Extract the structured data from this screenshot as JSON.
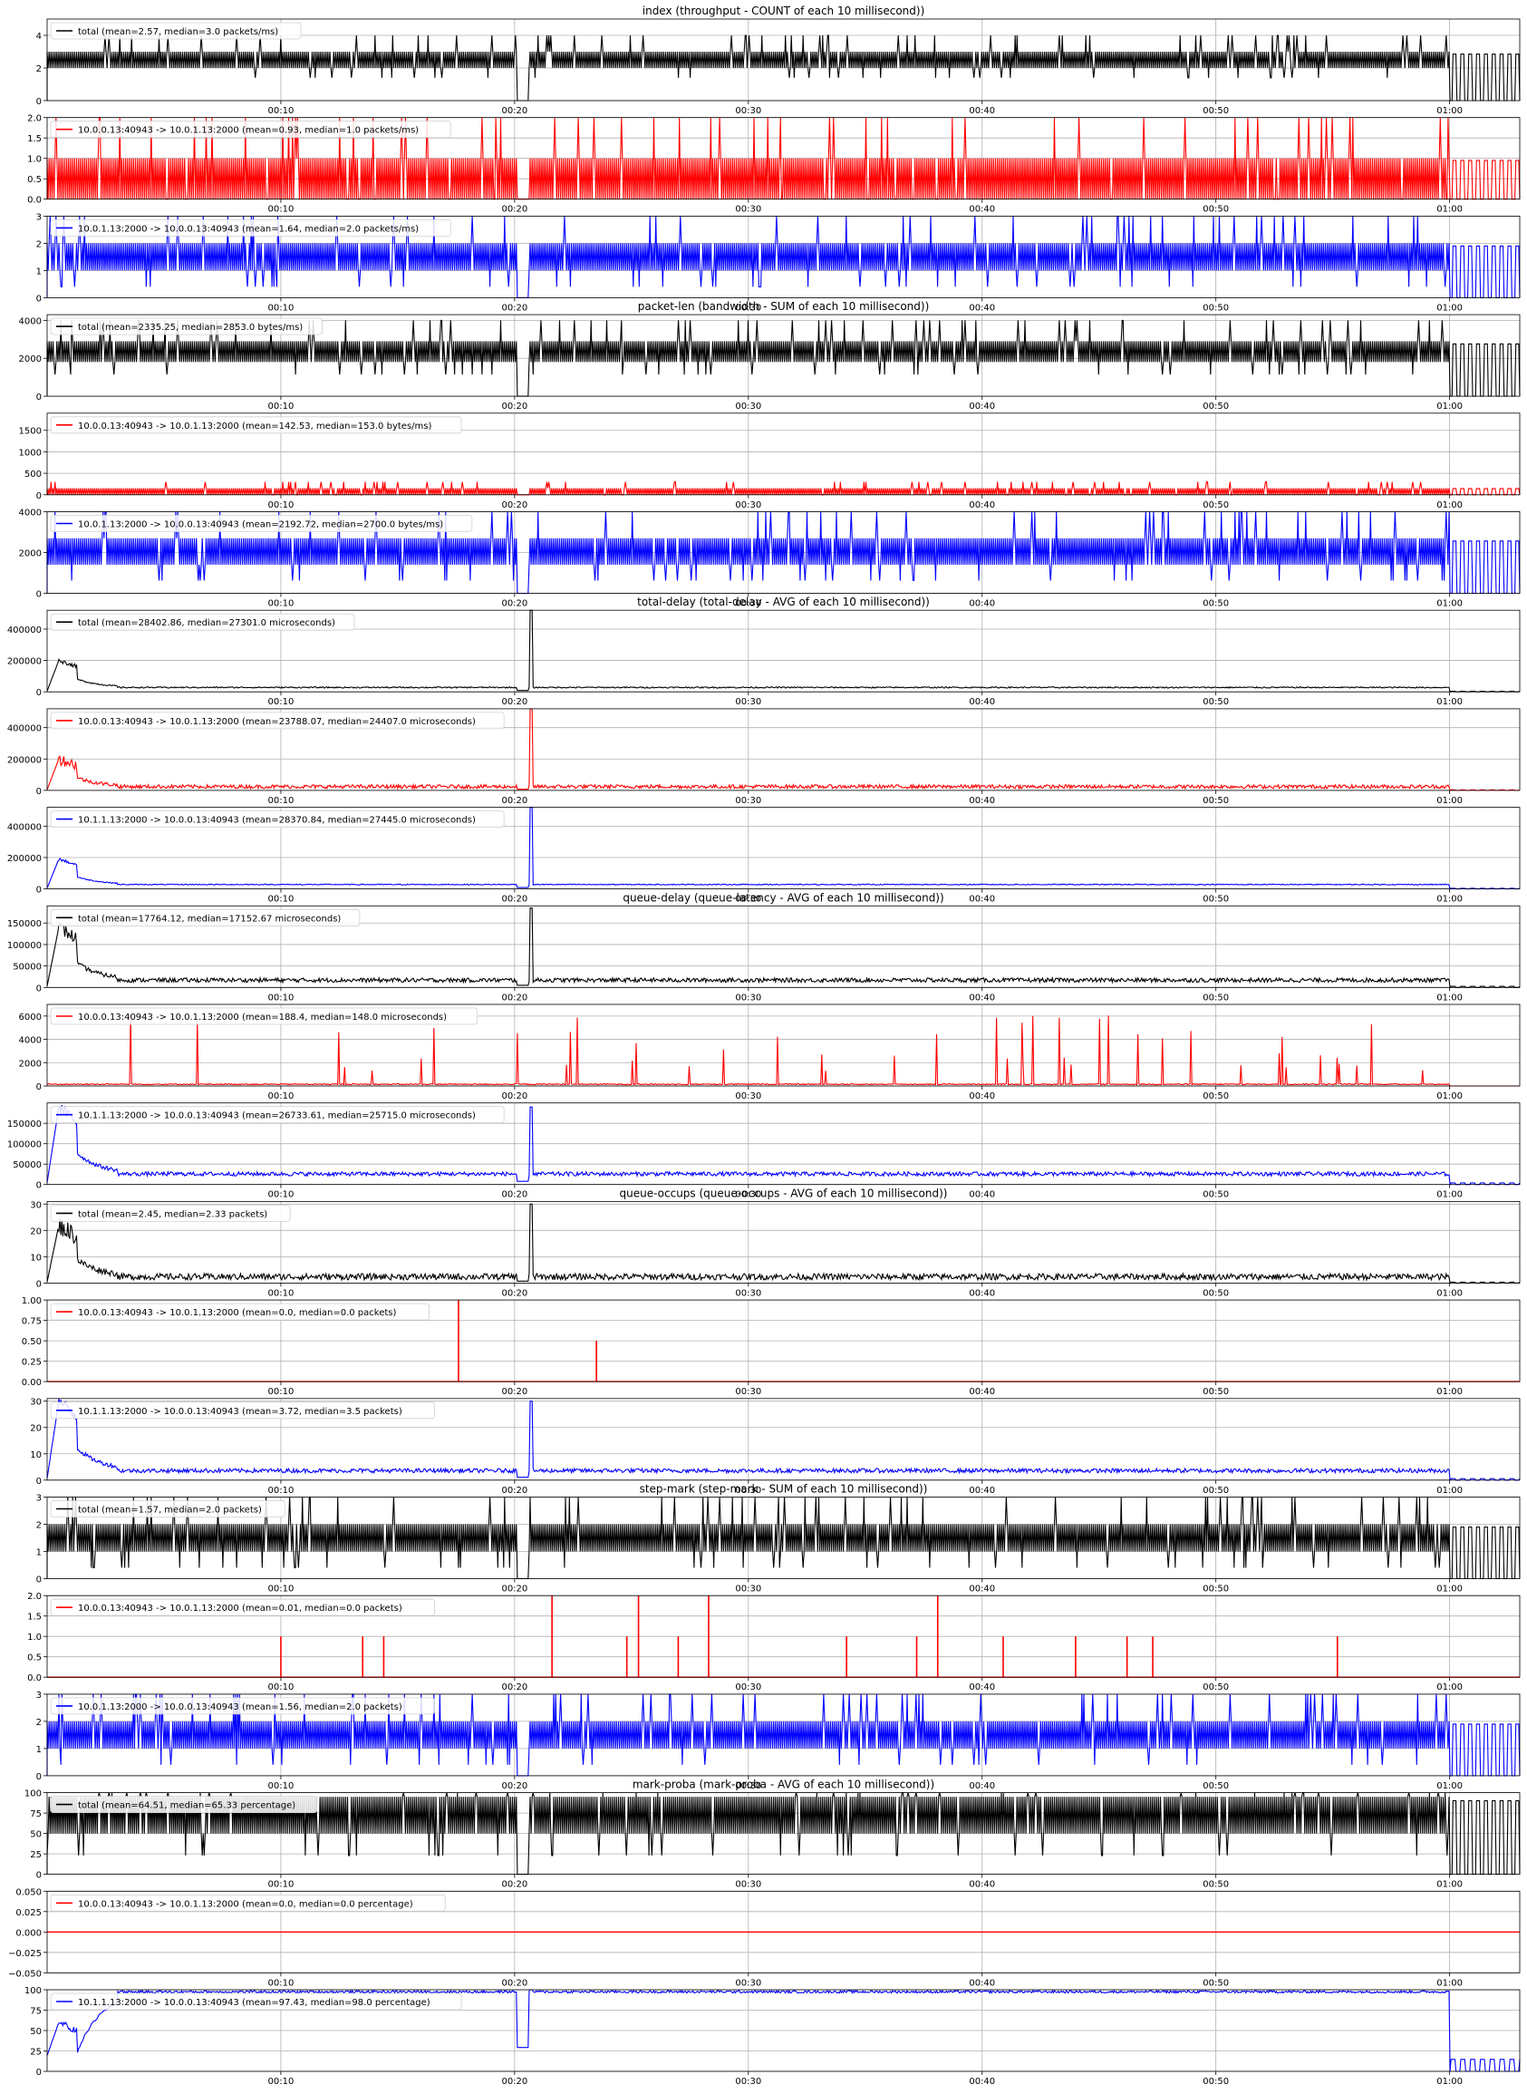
{
  "figure": {
    "x_ticks": [
      "00:10",
      "00:20",
      "00:30",
      "00:40",
      "00:50",
      "01:00"
    ],
    "colors": {
      "total": "#000000",
      "forward": "#ff0000",
      "reverse": "#0000ff"
    }
  },
  "chart_data": [
    {
      "type": "line",
      "group": 0,
      "title": "index (throughput - COUNT of each 10 millisecond))",
      "series": [
        {
          "name": "total (mean=2.57, median=3.0 packets/ms)",
          "color": "#000000",
          "kind": "band",
          "lo": 2,
          "hi": 3,
          "mean": 2.57,
          "median": 3.0,
          "spike": 4
        }
      ],
      "ylim": [
        0,
        5
      ],
      "yticks": [
        0,
        2,
        4
      ],
      "ytick_labels": [
        "0",
        "2",
        "4"
      ]
    },
    {
      "type": "line",
      "group": 0,
      "series": [
        {
          "name": "10.0.0.13:40943 -> 10.0.1.13:2000 (mean=0.93, median=1.0 packets/ms)",
          "color": "#ff0000",
          "kind": "band",
          "lo": 0,
          "hi": 1,
          "mean": 0.93,
          "median": 1.0,
          "spike": 2
        }
      ],
      "ylim": [
        0,
        2
      ],
      "yticks": [
        0,
        0.5,
        1.0,
        1.5,
        2.0
      ],
      "ytick_labels": [
        "0.0",
        "0.5",
        "1.0",
        "1.5",
        "2.0"
      ]
    },
    {
      "type": "line",
      "group": 0,
      "series": [
        {
          "name": "10.0.1.13:2000 -> 10.0.0.13:40943 (mean=1.64, median=2.0 packets/ms)",
          "color": "#0000ff",
          "kind": "band",
          "lo": 1,
          "hi": 2,
          "mean": 1.64,
          "median": 2.0,
          "spike": 3
        }
      ],
      "ylim": [
        0,
        3
      ],
      "yticks": [
        0,
        1,
        2,
        3
      ],
      "ytick_labels": [
        "0",
        "1",
        "2",
        "3"
      ]
    },
    {
      "type": "line",
      "group": 1,
      "title": "packet-len (bandwidth - SUM of each 10 millisecond))",
      "series": [
        {
          "name": "total (mean=2335.25, median=2853.0 bytes/ms)",
          "color": "#000000",
          "kind": "band",
          "lo": 1800,
          "hi": 2900,
          "mean": 2335.25,
          "median": 2853.0,
          "spike": 4000
        }
      ],
      "ylim": [
        0,
        4300
      ],
      "yticks": [
        0,
        2000,
        4000
      ],
      "ytick_labels": [
        "0",
        "2000",
        "4000"
      ]
    },
    {
      "type": "line",
      "group": 1,
      "series": [
        {
          "name": "10.0.0.13:40943 -> 10.0.1.13:2000 (mean=142.53, median=153.0 bytes/ms)",
          "color": "#ff0000",
          "kind": "band",
          "lo": 0,
          "hi": 153,
          "mean": 142.53,
          "median": 153.0,
          "spike": 300
        }
      ],
      "ylim": [
        0,
        1900
      ],
      "yticks": [
        0,
        500,
        1000,
        1500
      ],
      "ytick_labels": [
        "0",
        "500",
        "1000",
        "1500"
      ]
    },
    {
      "type": "line",
      "group": 1,
      "series": [
        {
          "name": "10.0.1.13:2000 -> 10.0.0.13:40943 (mean=2192.72, median=2700.0 bytes/ms)",
          "color": "#0000ff",
          "kind": "band",
          "lo": 1400,
          "hi": 2700,
          "mean": 2192.72,
          "median": 2700.0,
          "spike": 4000
        }
      ],
      "ylim": [
        0,
        4000
      ],
      "yticks": [
        0,
        2000,
        4000
      ],
      "ytick_labels": [
        "0",
        "2000",
        "4000"
      ]
    },
    {
      "type": "line",
      "group": 2,
      "title": "total-delay (total-delay - AVG of each 10 millisecond))",
      "series": [
        {
          "name": "total (mean=28402.86, median=27301.0 microseconds)",
          "color": "#000000",
          "kind": "noisy",
          "base": 28000,
          "peak": 200000,
          "spike": 520000,
          "noise": 4000
        }
      ],
      "ylim": [
        0,
        520000
      ],
      "yticks": [
        0,
        200000,
        400000
      ],
      "ytick_labels": [
        "0",
        "200000",
        "400000"
      ]
    },
    {
      "type": "line",
      "group": 2,
      "series": [
        {
          "name": "10.0.0.13:40943 -> 10.0.1.13:2000 (mean=23788.07, median=24407.0 microseconds)",
          "color": "#ff0000",
          "kind": "noisy",
          "base": 24000,
          "peak": 200000,
          "spike": 520000,
          "noise": 12000
        }
      ],
      "ylim": [
        0,
        520000
      ],
      "yticks": [
        0,
        200000,
        400000
      ],
      "ytick_labels": [
        "0",
        "200000",
        "400000"
      ]
    },
    {
      "type": "line",
      "group": 2,
      "series": [
        {
          "name": "10.1.1.13:2000 -> 10.0.0.13:40943 (mean=28370.84, median=27445.0 microseconds)",
          "color": "#0000ff",
          "kind": "noisy",
          "base": 28000,
          "peak": 190000,
          "spike": 520000,
          "noise": 3000
        }
      ],
      "ylim": [
        0,
        520000
      ],
      "yticks": [
        0,
        200000,
        400000
      ],
      "ytick_labels": [
        "0",
        "200000",
        "400000"
      ]
    },
    {
      "type": "line",
      "group": 3,
      "title": "queue-delay (queue-latency - AVG of each 10 millisecond))",
      "series": [
        {
          "name": "total (mean=17764.12, median=17152.67 microseconds)",
          "color": "#000000",
          "kind": "noisy",
          "base": 17000,
          "peak": 140000,
          "spike": 185000,
          "noise": 5000
        }
      ],
      "ylim": [
        0,
        190000
      ],
      "yticks": [
        0,
        50000,
        100000,
        150000
      ],
      "ytick_labels": [
        "0",
        "50000",
        "100000",
        "150000"
      ]
    },
    {
      "type": "line",
      "group": 3,
      "series": [
        {
          "name": "10.0.0.13:40943 -> 10.0.1.13:2000 (mean=188.4, median=148.0 microseconds)",
          "color": "#ff0000",
          "kind": "sparse",
          "base": 150,
          "spike": 6200
        }
      ],
      "ylim": [
        0,
        7000
      ],
      "yticks": [
        0,
        2000,
        4000,
        6000
      ],
      "ytick_labels": [
        "0",
        "2000",
        "4000",
        "6000"
      ]
    },
    {
      "type": "line",
      "group": 3,
      "series": [
        {
          "name": "10.1.1.13:2000 -> 10.0.0.13:40943 (mean=26733.61, median=25715.0 microseconds)",
          "color": "#0000ff",
          "kind": "noisy",
          "base": 26000,
          "peak": 190000,
          "spike": 190000,
          "noise": 5000
        }
      ],
      "ylim": [
        0,
        200000
      ],
      "yticks": [
        0,
        50000,
        100000,
        150000
      ],
      "ytick_labels": [
        "0",
        "50000",
        "100000",
        "150000"
      ]
    },
    {
      "type": "line",
      "group": 4,
      "title": "queue-occups (queue-occups - AVG of each 10 millisecond))",
      "series": [
        {
          "name": "total (mean=2.45, median=2.33 packets)",
          "color": "#000000",
          "kind": "noisy",
          "base": 2.4,
          "peak": 22,
          "spike": 30,
          "noise": 1.2
        }
      ],
      "ylim": [
        0,
        31
      ],
      "yticks": [
        0,
        10,
        20,
        30
      ],
      "ytick_labels": [
        "0",
        "10",
        "20",
        "30"
      ]
    },
    {
      "type": "line",
      "group": 4,
      "series": [
        {
          "name": "10.0.0.13:40943 -> 10.0.1.13:2000 (mean=0.0, median=0.0 packets)",
          "color": "#ff0000",
          "kind": "impulses",
          "base": 0,
          "impulses": [
            [
              17.6,
              1.0
            ],
            [
              23.5,
              0.5
            ]
          ]
        }
      ],
      "ylim": [
        0,
        1
      ],
      "yticks": [
        0,
        0.25,
        0.5,
        0.75,
        1.0
      ],
      "ytick_labels": [
        "0.00",
        "0.25",
        "0.50",
        "0.75",
        "1.00"
      ]
    },
    {
      "type": "line",
      "group": 4,
      "series": [
        {
          "name": "10.1.1.13:2000 -> 10.0.0.13:40943 (mean=3.72, median=3.5 packets)",
          "color": "#0000ff",
          "kind": "noisy",
          "base": 3.6,
          "peak": 30,
          "spike": 30,
          "noise": 0.8
        }
      ],
      "ylim": [
        0,
        31
      ],
      "yticks": [
        0,
        10,
        20,
        30
      ],
      "ytick_labels": [
        "0",
        "10",
        "20",
        "30"
      ]
    },
    {
      "type": "line",
      "group": 5,
      "title": "step-mark (step-mark - SUM of each 10 millisecond))",
      "series": [
        {
          "name": "total (mean=1.57, median=2.0 packets)",
          "color": "#000000",
          "kind": "band",
          "lo": 1,
          "hi": 2,
          "mean": 1.57,
          "median": 2.0,
          "spike": 3
        }
      ],
      "ylim": [
        0,
        3
      ],
      "yticks": [
        0,
        1,
        2,
        3
      ],
      "ytick_labels": [
        "0",
        "1",
        "2",
        "3"
      ]
    },
    {
      "type": "line",
      "group": 5,
      "series": [
        {
          "name": "10.0.0.13:40943 -> 10.0.1.13:2000 (mean=0.01, median=0.0 packets)",
          "color": "#ff0000",
          "kind": "impulses",
          "base": 0,
          "impulses": [
            [
              10.0,
              1
            ],
            [
              13.5,
              1
            ],
            [
              14.4,
              1
            ],
            [
              21.6,
              2
            ],
            [
              24.8,
              1
            ],
            [
              25.3,
              2
            ],
            [
              27.0,
              1
            ],
            [
              28.3,
              2
            ],
            [
              34.2,
              1
            ],
            [
              37.2,
              1
            ],
            [
              38.1,
              2
            ],
            [
              40.9,
              1
            ],
            [
              44.0,
              1
            ],
            [
              46.2,
              1
            ],
            [
              47.3,
              1
            ],
            [
              55.2,
              1
            ]
          ]
        }
      ],
      "ylim": [
        0,
        2
      ],
      "yticks": [
        0,
        0.5,
        1.0,
        1.5,
        2.0
      ],
      "ytick_labels": [
        "0.0",
        "0.5",
        "1.0",
        "1.5",
        "2.0"
      ]
    },
    {
      "type": "line",
      "group": 5,
      "series": [
        {
          "name": "10.0.1.13:2000 -> 10.0.0.13:40943 (mean=1.56, median=2.0 packets)",
          "color": "#0000ff",
          "kind": "band",
          "lo": 1,
          "hi": 2,
          "mean": 1.56,
          "median": 2.0,
          "spike": 3
        }
      ],
      "ylim": [
        0,
        3
      ],
      "yticks": [
        0,
        1,
        2,
        3
      ],
      "ytick_labels": [
        "0",
        "1",
        "2",
        "3"
      ]
    },
    {
      "type": "line",
      "group": 6,
      "title": "mark-proba (mark-proba - AVG of each 10 millisecond))",
      "series": [
        {
          "name": "total (mean=64.51, median=65.33 percentage)",
          "color": "#000000",
          "kind": "band",
          "lo": 50,
          "hi": 95,
          "mean": 64.51,
          "median": 65.33,
          "spike": 100
        }
      ],
      "ylim": [
        0,
        100
      ],
      "yticks": [
        0,
        25,
        50,
        75,
        100
      ],
      "ytick_labels": [
        "0",
        "25",
        "50",
        "75",
        "100"
      ]
    },
    {
      "type": "line",
      "group": 6,
      "series": [
        {
          "name": "10.0.0.13:40943 -> 10.0.1.13:2000 (mean=0.0, median=0.0 percentage)",
          "color": "#ff0000",
          "kind": "flat",
          "base": 0
        }
      ],
      "ylim": [
        -0.05,
        0.05
      ],
      "yticks": [
        -0.05,
        -0.025,
        0,
        0.025,
        0.05
      ],
      "ytick_labels": [
        "−0.050",
        "−0.025",
        "0.000",
        "0.025",
        "0.050"
      ]
    },
    {
      "type": "line",
      "group": 6,
      "series": [
        {
          "name": "10.1.1.13:2000 -> 10.0.0.13:40943 (mean=97.43, median=98.0 percentage)",
          "color": "#0000ff",
          "kind": "noisy",
          "base": 97.5,
          "peak": 60,
          "spike": 100,
          "noise": 1.5
        }
      ],
      "ylim": [
        0,
        100
      ],
      "yticks": [
        0,
        25,
        50,
        75,
        100
      ],
      "ytick_labels": [
        "0",
        "25",
        "50",
        "75",
        "100"
      ]
    }
  ]
}
